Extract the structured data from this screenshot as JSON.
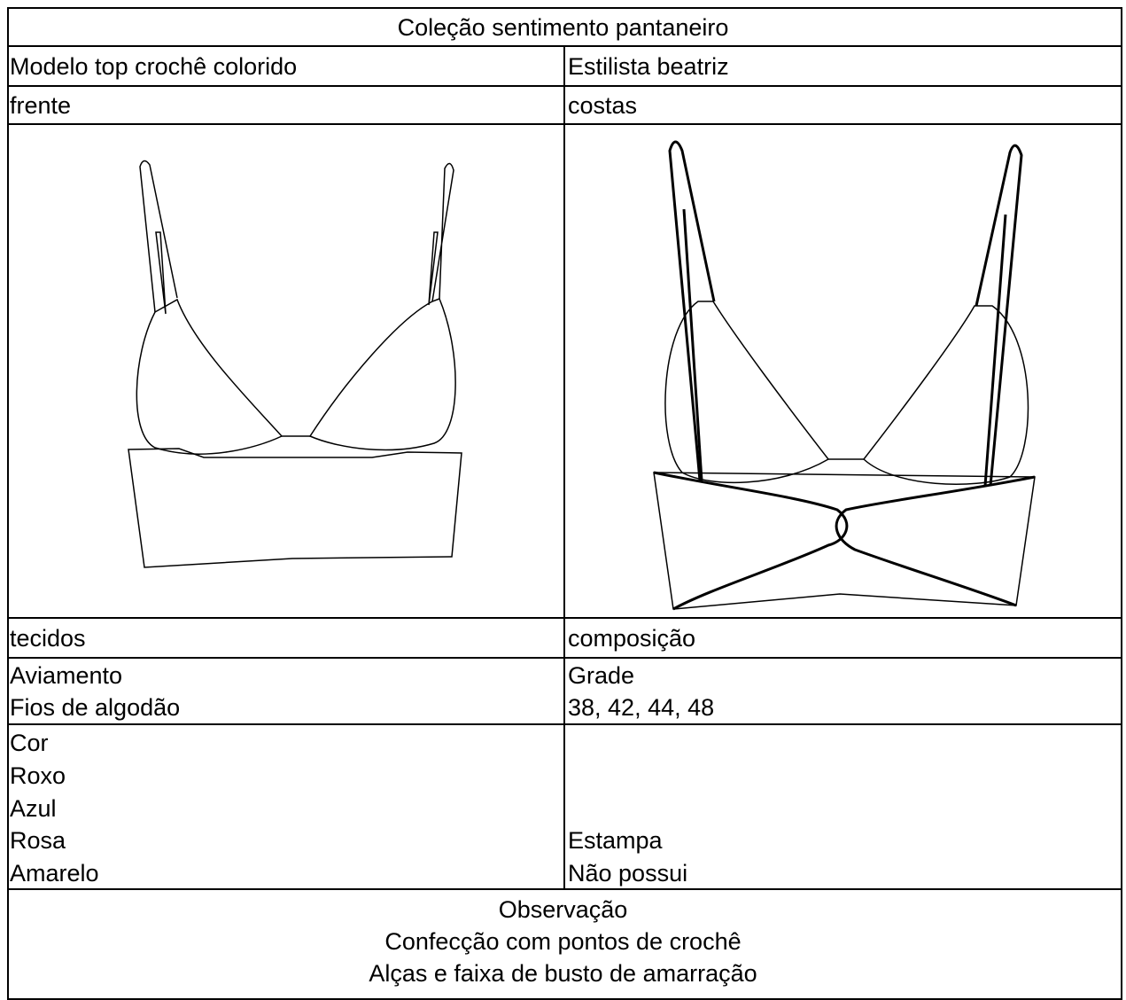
{
  "header": {
    "title": "Coleção sentimento pantaneiro"
  },
  "rows": [
    {
      "left": [
        "Modelo top crochê colorido"
      ],
      "right": [
        "Estilista beatriz"
      ]
    },
    {
      "left": [
        "frente"
      ],
      "right": [
        "costas"
      ]
    },
    {
      "left": [
        "tecidos"
      ],
      "right": [
        "composição"
      ]
    },
    {
      "left": [
        "Aviamento",
        "Fios de algodão"
      ],
      "right": [
        "Grade",
        "38, 42, 44, 48"
      ]
    },
    {
      "left": [
        "Cor",
        "Roxo",
        "Azul",
        "Rosa",
        "Amarelo"
      ],
      "right": [
        "Estampa",
        "Não possui"
      ]
    }
  ],
  "observation": {
    "title": "Observação",
    "lines": [
      "Confecção com pontos de crochê",
      "Alças e faixa de busto de amarração"
    ]
  }
}
